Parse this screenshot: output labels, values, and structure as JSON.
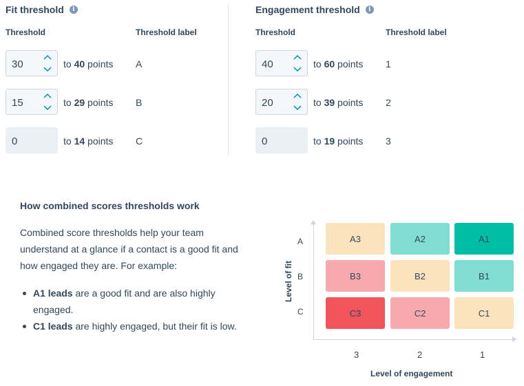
{
  "fit": {
    "title": "Fit threshold",
    "col_threshold": "Threshold",
    "col_label": "Threshold label",
    "rows": [
      {
        "value": "30",
        "to": "to ",
        "max": "40",
        "unit": " points",
        "label": "A"
      },
      {
        "value": "15",
        "to": "to ",
        "max": "29",
        "unit": " points",
        "label": "B"
      },
      {
        "value": "0",
        "to": "to ",
        "max": "14",
        "unit": " points",
        "label": "C"
      }
    ]
  },
  "engagement": {
    "title": "Engagement threshold",
    "col_threshold": "Threshold",
    "col_label": "Threshold label",
    "rows": [
      {
        "value": "40",
        "to": "to ",
        "max": "60",
        "unit": " points",
        "label": "1"
      },
      {
        "value": "20",
        "to": "to ",
        "max": "39",
        "unit": " points",
        "label": "2"
      },
      {
        "value": "0",
        "to": "to ",
        "max": "19",
        "unit": " points",
        "label": "3"
      }
    ]
  },
  "how": {
    "title": "How combined scores thresholds work",
    "paragraph": "Combined score thresholds help your team understand at a glance if a contact is a good fit and how engaged they are. For example:",
    "bullets": [
      {
        "bold": "A1 leads",
        "text": " are a good fit and are also highly engaged."
      },
      {
        "bold": "C1 leads",
        "text": " are highly engaged, but their fit is low."
      }
    ]
  },
  "matrix": {
    "y_axis_label": "Level of fit",
    "x_axis_label": "Level of engagement",
    "row_labels": [
      "A",
      "B",
      "C"
    ],
    "col_labels": [
      "3",
      "2",
      "1"
    ],
    "cells": [
      [
        "A3",
        "A2",
        "A1"
      ],
      [
        "B3",
        "B2",
        "B1"
      ],
      [
        "C3",
        "C2",
        "C1"
      ]
    ],
    "colors": {
      "A3": "#fbe3bd",
      "A2": "#7fded1",
      "A1": "#00bda5",
      "B3": "#f8a9ad",
      "B2": "#fbe3bd",
      "B1": "#7fded1",
      "C3": "#f2545b",
      "C2": "#f8a9ad",
      "C1": "#fbe3bd"
    }
  },
  "icons": {
    "info": "info-icon",
    "up": "chevron-up-icon",
    "down": "chevron-down-icon"
  }
}
